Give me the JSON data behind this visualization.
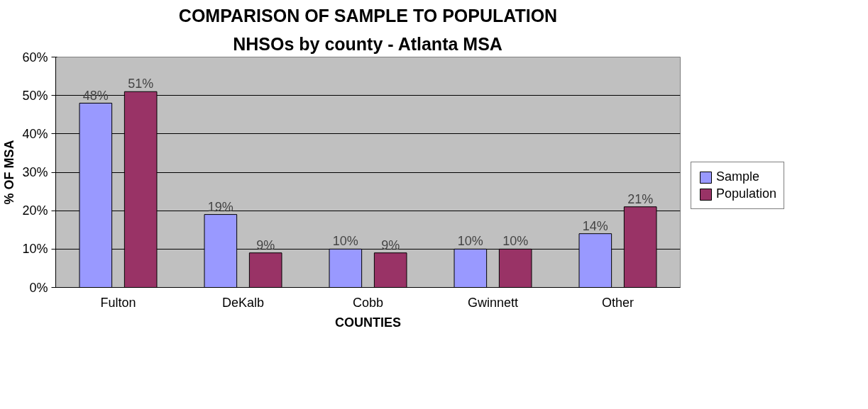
{
  "chart_data": {
    "type": "bar",
    "title": "COMPARISON OF SAMPLE TO POPULATION",
    "subtitle": "NHSOs by county - Atlanta MSA",
    "xlabel": "COUNTIES",
    "ylabel": "% OF MSA",
    "categories": [
      "Fulton",
      "DeKalb",
      "Cobb",
      "Gwinnett",
      "Other"
    ],
    "series": [
      {
        "name": "Sample",
        "color": "#9999ff",
        "values": [
          48,
          19,
          10,
          10,
          14
        ],
        "value_labels": [
          "48%",
          "19%",
          "10%",
          "10%",
          "14%"
        ]
      },
      {
        "name": "Population",
        "color": "#993366",
        "values": [
          51,
          9,
          9,
          10,
          21
        ],
        "value_labels": [
          "51%",
          "9%",
          "9%",
          "10%",
          "21%"
        ]
      }
    ],
    "ylim": [
      0,
      60
    ],
    "yticks": [
      {
        "value": 0,
        "label": "0%"
      },
      {
        "value": 10,
        "label": "10%"
      },
      {
        "value": 20,
        "label": "20%"
      },
      {
        "value": 30,
        "label": "30%"
      },
      {
        "value": 40,
        "label": "40%"
      },
      {
        "value": 50,
        "label": "50%"
      },
      {
        "value": 60,
        "label": "60%"
      }
    ],
    "grid": "y",
    "legend": "right"
  }
}
